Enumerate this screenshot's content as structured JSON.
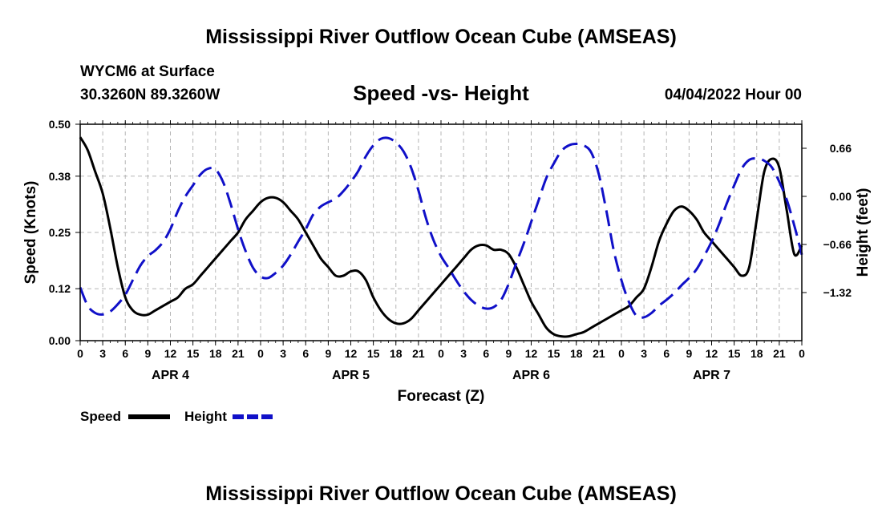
{
  "chart_data": {
    "type": "line",
    "title": "Mississippi River Outflow Ocean Cube (AMSEAS)",
    "footer_title": "Mississippi River Outflow Ocean Cube (AMSEAS)",
    "station": "WYCM6 at Surface",
    "coords": "30.3260N  89.3260W",
    "subtitle": "Speed -vs- Height",
    "date": "04/04/2022 Hour 00",
    "xlabel": "Forecast (Z)",
    "ylabel_left": "Speed (Knots)",
    "ylabel_right": "Height (feet)",
    "xlim": [
      0,
      96
    ],
    "ylim_left": [
      0,
      0.5
    ],
    "ylim_right": [
      -1.98,
      0.99
    ],
    "x_tick_labels": [
      "0",
      "3",
      "6",
      "9",
      "12",
      "15",
      "18",
      "21",
      "0",
      "3",
      "6",
      "9",
      "12",
      "15",
      "18",
      "21",
      "0",
      "3",
      "6",
      "9",
      "12",
      "15",
      "18",
      "21",
      "0",
      "3",
      "6",
      "9",
      "12",
      "15",
      "18",
      "21",
      "0"
    ],
    "day_labels": [
      "APR 4",
      "APR 5",
      "APR 6",
      "APR 7"
    ],
    "y_left_ticks": [
      "0.50",
      "0.38",
      "0.25",
      "0.12",
      "0.00"
    ],
    "y_right_ticks": [
      "0.66",
      "0.00",
      "−0.66",
      "−1.32"
    ],
    "legend": [
      {
        "label": "Speed",
        "color": "#000000",
        "dash": "solid"
      },
      {
        "label": "Height",
        "color": "#1010c8",
        "dash": "dashed"
      }
    ],
    "series": [
      {
        "name": "Speed",
        "axis": "left",
        "color": "#000000",
        "x": [
          0,
          1,
          2,
          3,
          4,
          5,
          6,
          7,
          8,
          9,
          10,
          11,
          12,
          13,
          14,
          15,
          16,
          17,
          18,
          19,
          20,
          21,
          22,
          23,
          24,
          25,
          26,
          27,
          28,
          29,
          30,
          31,
          32,
          33,
          34,
          35,
          36,
          37,
          38,
          39,
          40,
          41,
          42,
          43,
          44,
          45,
          46,
          47,
          48,
          49,
          50,
          51,
          52,
          53,
          54,
          55,
          56,
          57,
          58,
          59,
          60,
          61,
          62,
          63,
          64,
          65,
          66,
          67,
          68,
          69,
          70,
          71,
          72,
          73,
          74,
          75,
          76,
          77,
          78,
          79,
          80,
          81,
          82,
          83,
          84,
          85,
          86,
          87,
          88,
          89,
          90,
          91,
          92,
          93,
          94,
          95,
          96
        ],
        "values": [
          0.47,
          0.44,
          0.39,
          0.34,
          0.26,
          0.17,
          0.1,
          0.07,
          0.06,
          0.06,
          0.07,
          0.08,
          0.09,
          0.1,
          0.12,
          0.13,
          0.15,
          0.17,
          0.19,
          0.21,
          0.23,
          0.25,
          0.28,
          0.3,
          0.32,
          0.33,
          0.33,
          0.32,
          0.3,
          0.28,
          0.25,
          0.22,
          0.19,
          0.17,
          0.15,
          0.15,
          0.16,
          0.16,
          0.14,
          0.1,
          0.07,
          0.05,
          0.04,
          0.04,
          0.05,
          0.07,
          0.09,
          0.11,
          0.13,
          0.15,
          0.17,
          0.19,
          0.21,
          0.22,
          0.22,
          0.21,
          0.21,
          0.2,
          0.17,
          0.13,
          0.09,
          0.06,
          0.03,
          0.015,
          0.01,
          0.01,
          0.015,
          0.02,
          0.03,
          0.04,
          0.05,
          0.06,
          0.07,
          0.08,
          0.1,
          0.12,
          0.17,
          0.23,
          0.27,
          0.3,
          0.31,
          0.3,
          0.28,
          0.25,
          0.23,
          0.21,
          0.19,
          0.17,
          0.15,
          0.17,
          0.28,
          0.39,
          0.42,
          0.4,
          0.3,
          0.2,
          0.22
        ]
      },
      {
        "name": "Height",
        "axis": "right",
        "color": "#1010c8",
        "x": [
          0,
          1,
          2,
          3,
          4,
          5,
          6,
          7,
          8,
          9,
          10,
          11,
          12,
          13,
          14,
          15,
          16,
          17,
          18,
          19,
          20,
          21,
          22,
          23,
          24,
          25,
          26,
          27,
          28,
          29,
          30,
          31,
          32,
          33,
          34,
          35,
          36,
          37,
          38,
          39,
          40,
          41,
          42,
          43,
          44,
          45,
          46,
          47,
          48,
          49,
          50,
          51,
          52,
          53,
          54,
          55,
          56,
          57,
          58,
          59,
          60,
          61,
          62,
          63,
          64,
          65,
          66,
          67,
          68,
          69,
          70,
          71,
          72,
          73,
          74,
          75,
          76,
          77,
          78,
          79,
          80,
          81,
          82,
          83,
          84,
          85,
          86,
          87,
          88,
          89,
          90,
          91,
          92,
          93,
          94,
          95,
          96
        ],
        "values": [
          -1.25,
          -1.5,
          -1.6,
          -1.62,
          -1.58,
          -1.48,
          -1.35,
          -1.15,
          -0.95,
          -0.82,
          -0.74,
          -0.63,
          -0.45,
          -0.2,
          0.0,
          0.15,
          0.3,
          0.38,
          0.37,
          0.2,
          -0.1,
          -0.45,
          -0.75,
          -0.98,
          -1.1,
          -1.12,
          -1.05,
          -0.95,
          -0.8,
          -0.62,
          -0.45,
          -0.25,
          -0.14,
          -0.08,
          -0.03,
          0.07,
          0.2,
          0.35,
          0.55,
          0.7,
          0.79,
          0.8,
          0.74,
          0.62,
          0.4,
          0.08,
          -0.3,
          -0.6,
          -0.82,
          -0.98,
          -1.15,
          -1.3,
          -1.42,
          -1.5,
          -1.54,
          -1.52,
          -1.42,
          -1.2,
          -0.92,
          -0.65,
          -0.35,
          -0.05,
          0.25,
          0.45,
          0.62,
          0.7,
          0.72,
          0.7,
          0.6,
          0.3,
          -0.2,
          -0.75,
          -1.15,
          -1.45,
          -1.64,
          -1.66,
          -1.6,
          -1.5,
          -1.42,
          -1.33,
          -1.22,
          -1.12,
          -1.0,
          -0.82,
          -0.62,
          -0.38,
          -0.1,
          0.15,
          0.38,
          0.5,
          0.52,
          0.49,
          0.4,
          0.2,
          -0.05,
          -0.4,
          -0.8
        ]
      }
    ]
  }
}
